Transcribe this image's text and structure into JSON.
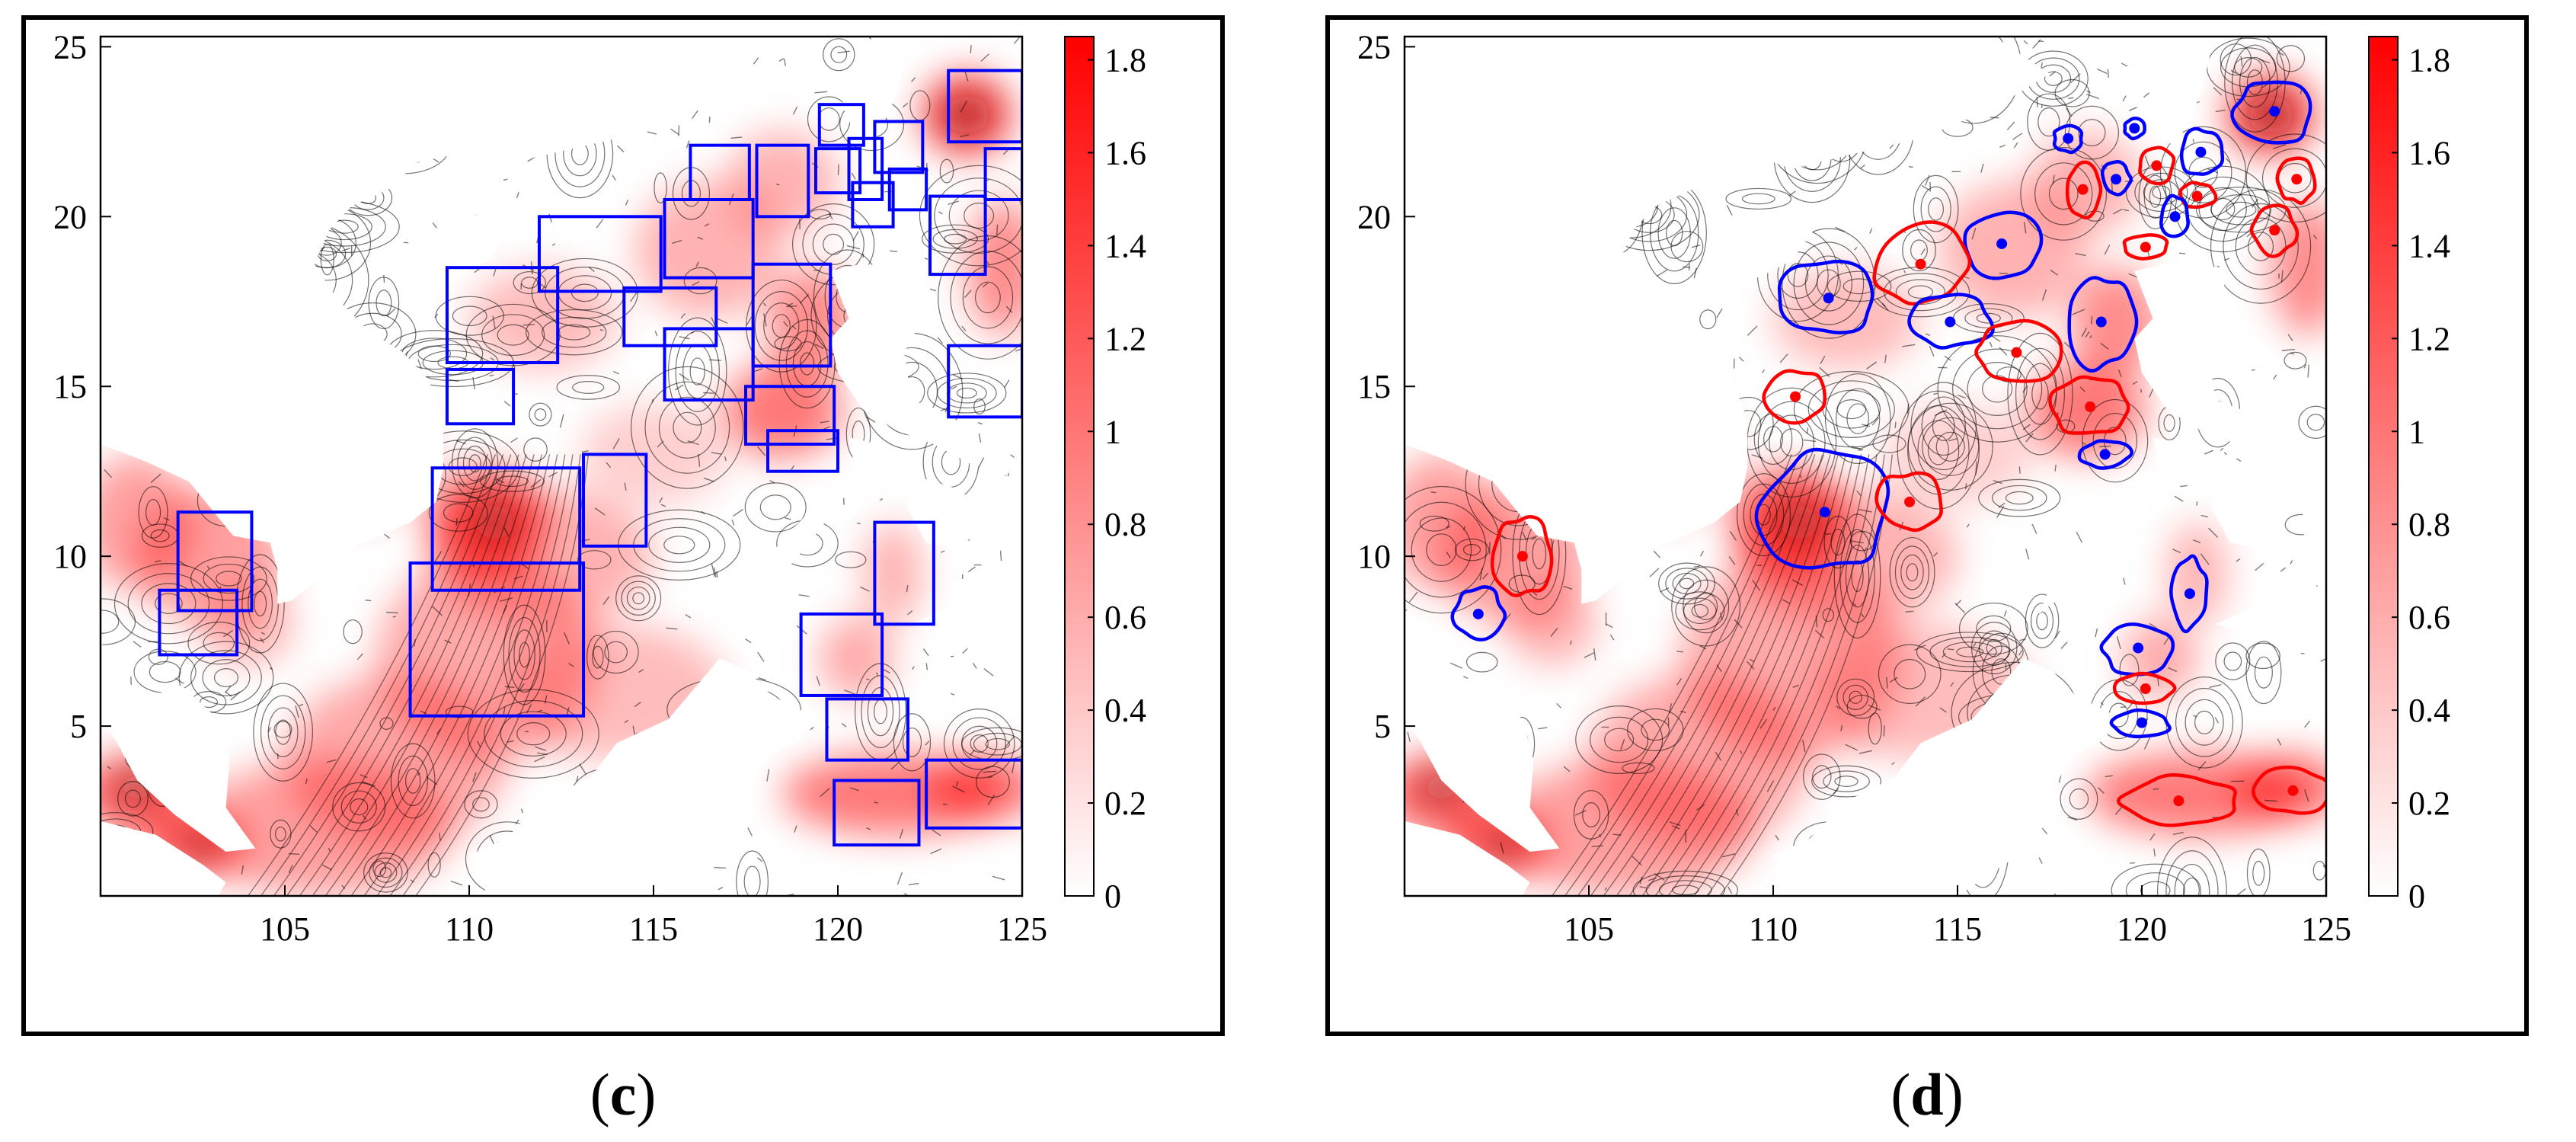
{
  "figure": {
    "panels": [
      {
        "id": "c",
        "caption_open": "(",
        "caption_letter": "c",
        "caption_close": ")"
      },
      {
        "id": "d",
        "caption_open": "(",
        "caption_letter": "d",
        "caption_close": ")"
      }
    ],
    "x_axis": {
      "min": 100,
      "max": 125,
      "ticks": [
        105,
        110,
        115,
        120,
        125
      ],
      "tick_labels": [
        "105",
        "110",
        "115",
        "120",
        "125"
      ]
    },
    "y_axis": {
      "min": 0,
      "max": 25.3,
      "ticks": [
        5,
        10,
        15,
        20,
        25
      ],
      "tick_labels": [
        "5",
        "10",
        "15",
        "20",
        "25"
      ]
    },
    "colorbar": {
      "min": 0,
      "max": 1.85,
      "ticks": [
        0,
        0.2,
        0.4,
        0.6,
        0.8,
        1,
        1.2,
        1.4,
        1.6,
        1.8
      ],
      "tick_labels": [
        "0",
        "0.2",
        "0.4",
        "0.6",
        "0.8",
        "1",
        "1.2",
        "1.4",
        "1.6",
        "1.8"
      ],
      "color_low": "#ffffff",
      "color_high": "#ff0000"
    },
    "colors": {
      "box": "#0000ff",
      "cyclonic": "#0000ff",
      "anticyclonic": "#ff0000",
      "contour": "#000000"
    }
  },
  "chart_data": [
    {
      "type": "map",
      "panel": "c",
      "xlim": [
        100,
        125
      ],
      "ylim": [
        0,
        25.3
      ],
      "boxes": [
        {
          "x0": 123.0,
          "y0": 22.2,
          "x1": 125.0,
          "y1": 24.3
        },
        {
          "x0": 124.0,
          "y0": 20.5,
          "x1": 125.0,
          "y1": 22.0
        },
        {
          "x0": 122.5,
          "y0": 18.3,
          "x1": 124.0,
          "y1": 20.6
        },
        {
          "x0": 123.0,
          "y0": 14.1,
          "x1": 125.0,
          "y1": 16.2
        },
        {
          "x0": 116.0,
          "y0": 20.5,
          "x1": 117.6,
          "y1": 22.1
        },
        {
          "x0": 117.8,
          "y0": 20.0,
          "x1": 119.2,
          "y1": 22.1
        },
        {
          "x0": 119.5,
          "y0": 22.1,
          "x1": 120.7,
          "y1": 23.3
        },
        {
          "x0": 119.4,
          "y0": 20.7,
          "x1": 120.6,
          "y1": 22.0
        },
        {
          "x0": 120.3,
          "y0": 20.5,
          "x1": 121.2,
          "y1": 22.3
        },
        {
          "x0": 121.0,
          "y0": 21.3,
          "x1": 122.3,
          "y1": 22.8
        },
        {
          "x0": 120.4,
          "y0": 19.7,
          "x1": 121.5,
          "y1": 21.0
        },
        {
          "x0": 121.4,
          "y0": 20.2,
          "x1": 122.4,
          "y1": 21.4
        },
        {
          "x0": 115.3,
          "y0": 18.2,
          "x1": 117.7,
          "y1": 20.5
        },
        {
          "x0": 111.9,
          "y0": 17.8,
          "x1": 115.2,
          "y1": 20.0
        },
        {
          "x0": 109.4,
          "y0": 15.7,
          "x1": 112.4,
          "y1": 18.5
        },
        {
          "x0": 114.2,
          "y0": 16.2,
          "x1": 116.7,
          "y1": 17.9
        },
        {
          "x0": 115.3,
          "y0": 14.6,
          "x1": 117.7,
          "y1": 16.7
        },
        {
          "x0": 117.7,
          "y0": 15.6,
          "x1": 119.8,
          "y1": 18.6
        },
        {
          "x0": 117.5,
          "y0": 13.3,
          "x1": 119.9,
          "y1": 15.0
        },
        {
          "x0": 118.1,
          "y0": 12.5,
          "x1": 120.0,
          "y1": 13.7
        },
        {
          "x0": 109.4,
          "y0": 13.9,
          "x1": 111.2,
          "y1": 15.5
        },
        {
          "x0": 109.0,
          "y0": 9.0,
          "x1": 113.0,
          "y1": 12.6
        },
        {
          "x0": 113.1,
          "y0": 10.3,
          "x1": 114.8,
          "y1": 13.0
        },
        {
          "x0": 108.4,
          "y0": 5.3,
          "x1": 113.1,
          "y1": 9.8
        },
        {
          "x0": 102.1,
          "y0": 8.4,
          "x1": 104.1,
          "y1": 11.3
        },
        {
          "x0": 101.6,
          "y0": 7.1,
          "x1": 103.7,
          "y1": 9.0
        },
        {
          "x0": 121.0,
          "y0": 8.0,
          "x1": 122.6,
          "y1": 11.0
        },
        {
          "x0": 119.0,
          "y0": 5.9,
          "x1": 121.2,
          "y1": 8.3
        },
        {
          "x0": 119.7,
          "y0": 4.0,
          "x1": 121.9,
          "y1": 5.8
        },
        {
          "x0": 119.9,
          "y0": 1.5,
          "x1": 122.2,
          "y1": 3.4
        },
        {
          "x0": 122.4,
          "y0": 2.0,
          "x1": 125.0,
          "y1": 4.0
        }
      ]
    },
    {
      "type": "map",
      "panel": "d",
      "xlim": [
        100,
        125
      ],
      "ylim": [
        0,
        25.3
      ],
      "eddies": [
        {
          "kind": "cyclonic",
          "x": 123.6,
          "y": 23.1,
          "rx": 1.1,
          "ry": 1.0
        },
        {
          "kind": "anticyclonic",
          "x": 124.2,
          "y": 21.1,
          "rx": 0.5,
          "ry": 0.7
        },
        {
          "kind": "anticyclonic",
          "x": 123.6,
          "y": 19.6,
          "rx": 0.6,
          "ry": 0.8
        },
        {
          "kind": "cyclonic",
          "x": 118.0,
          "y": 22.3,
          "rx": 0.4,
          "ry": 0.4
        },
        {
          "kind": "cyclonic",
          "x": 119.8,
          "y": 22.6,
          "rx": 0.3,
          "ry": 0.3
        },
        {
          "kind": "anticyclonic",
          "x": 118.4,
          "y": 20.8,
          "rx": 0.5,
          "ry": 0.8
        },
        {
          "kind": "cyclonic",
          "x": 119.3,
          "y": 21.1,
          "rx": 0.4,
          "ry": 0.5
        },
        {
          "kind": "anticyclonic",
          "x": 120.4,
          "y": 21.5,
          "rx": 0.5,
          "ry": 0.5
        },
        {
          "kind": "cyclonic",
          "x": 121.6,
          "y": 21.9,
          "rx": 0.6,
          "ry": 0.7
        },
        {
          "kind": "anticyclonic",
          "x": 121.5,
          "y": 20.6,
          "rx": 0.5,
          "ry": 0.4
        },
        {
          "kind": "cyclonic",
          "x": 120.9,
          "y": 20.0,
          "rx": 0.4,
          "ry": 0.6
        },
        {
          "kind": "anticyclonic",
          "x": 120.1,
          "y": 19.1,
          "rx": 0.6,
          "ry": 0.4
        },
        {
          "kind": "cyclonic",
          "x": 116.2,
          "y": 19.2,
          "rx": 1.1,
          "ry": 1.0
        },
        {
          "kind": "anticyclonic",
          "x": 114.0,
          "y": 18.6,
          "rx": 1.3,
          "ry": 1.3
        },
        {
          "kind": "cyclonic",
          "x": 111.5,
          "y": 17.6,
          "rx": 1.4,
          "ry": 1.1
        },
        {
          "kind": "cyclonic",
          "x": 114.8,
          "y": 16.9,
          "rx": 1.2,
          "ry": 0.8
        },
        {
          "kind": "anticyclonic",
          "x": 116.6,
          "y": 16.0,
          "rx": 1.2,
          "ry": 0.9
        },
        {
          "kind": "cyclonic",
          "x": 118.9,
          "y": 16.9,
          "rx": 0.9,
          "ry": 1.4
        },
        {
          "kind": "anticyclonic",
          "x": 110.6,
          "y": 14.7,
          "rx": 0.9,
          "ry": 0.8
        },
        {
          "kind": "anticyclonic",
          "x": 118.6,
          "y": 14.4,
          "rx": 1.1,
          "ry": 0.9
        },
        {
          "kind": "cyclonic",
          "x": 119.0,
          "y": 13.0,
          "rx": 0.7,
          "ry": 0.4
        },
        {
          "kind": "cyclonic",
          "x": 111.4,
          "y": 11.3,
          "rx": 1.9,
          "ry": 1.8
        },
        {
          "kind": "anticyclonic",
          "x": 113.7,
          "y": 11.6,
          "rx": 0.9,
          "ry": 0.9
        },
        {
          "kind": "anticyclonic",
          "x": 103.2,
          "y": 10.0,
          "rx": 0.8,
          "ry": 1.2
        },
        {
          "kind": "cyclonic",
          "x": 102.0,
          "y": 8.3,
          "rx": 0.7,
          "ry": 0.8
        },
        {
          "kind": "cyclonic",
          "x": 121.3,
          "y": 8.9,
          "rx": 0.5,
          "ry": 1.1
        },
        {
          "kind": "cyclonic",
          "x": 119.9,
          "y": 7.3,
          "rx": 1.0,
          "ry": 0.8
        },
        {
          "kind": "anticyclonic",
          "x": 120.1,
          "y": 6.1,
          "rx": 0.8,
          "ry": 0.5
        },
        {
          "kind": "cyclonic",
          "x": 120.0,
          "y": 5.1,
          "rx": 0.8,
          "ry": 0.4
        },
        {
          "kind": "anticyclonic",
          "x": 121.0,
          "y": 2.8,
          "rx": 1.6,
          "ry": 0.8
        },
        {
          "kind": "anticyclonic",
          "x": 124.1,
          "y": 3.1,
          "rx": 1.0,
          "ry": 0.7
        }
      ]
    }
  ]
}
